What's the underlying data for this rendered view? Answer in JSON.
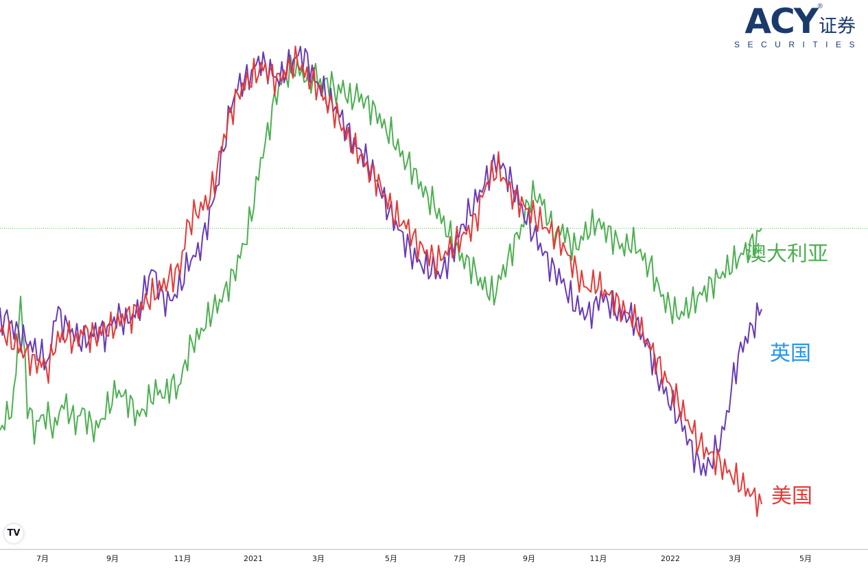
{
  "logo": {
    "mark": "ACY",
    "chinese": "证券",
    "sub": "SECURITIES",
    "registered": "®",
    "color": "#1b3a6b"
  },
  "badge": {
    "label": "TV"
  },
  "chart_data": {
    "type": "line",
    "xlabel": "",
    "ylabel": "",
    "grid": false,
    "reference_line": {
      "color": "#4caf50",
      "style": "dotted"
    },
    "x_ticks": [
      "7月",
      "9月",
      "11月",
      "2021",
      "3月",
      "5月",
      "7月",
      "9月",
      "11月",
      "2022",
      "3月",
      "5月"
    ],
    "series": [
      {
        "name": "澳大利亚",
        "color": "#4caf50",
        "values": [
          -22,
          -20,
          -18,
          -2,
          -18,
          -22,
          -20,
          -20,
          -22,
          -18,
          -19,
          -21,
          -19,
          -21,
          -22,
          -20,
          -18,
          -16,
          -17,
          -18,
          -20,
          -19,
          -17,
          -16,
          -17,
          -15,
          -16,
          -12,
          -9,
          -8,
          -6,
          -4,
          -3,
          -1,
          1,
          4,
          7,
          12,
          18,
          22,
          27,
          30,
          31,
          32,
          31,
          30,
          31,
          29,
          30,
          28,
          29,
          27,
          28,
          27,
          26,
          25,
          23,
          22,
          20,
          18,
          17,
          15,
          13,
          12,
          10,
          8,
          6,
          4,
          3,
          2,
          0,
          -1,
          -2,
          1,
          3,
          6,
          8,
          12,
          13,
          12,
          9,
          7,
          8,
          6,
          5,
          7,
          8,
          9,
          8,
          7,
          6,
          5,
          6,
          5,
          3,
          2,
          -1,
          -3,
          -4,
          -5,
          -4,
          -3,
          -2,
          -1,
          0,
          1,
          2,
          3,
          4,
          5,
          6,
          8
        ]
      },
      {
        "name": "英国",
        "color": "#1e88e5",
        "label_color": "#2196f3",
        "line_color": "#673ab7",
        "values": [
          -6,
          -5,
          -7,
          -8,
          -9,
          -10,
          -11,
          -12,
          -4,
          -6,
          -7,
          -8,
          -9,
          -8,
          -7,
          -8,
          -6,
          -5,
          -6,
          -5,
          -4,
          0,
          2,
          -2,
          -3,
          -2,
          0,
          3,
          4,
          6,
          10,
          14,
          20,
          26,
          29,
          30,
          31,
          33,
          32,
          31,
          30,
          32,
          33,
          34,
          33,
          30,
          29,
          27,
          26,
          24,
          22,
          20,
          19,
          17,
          15,
          12,
          10,
          8,
          6,
          4,
          3,
          2,
          2,
          1,
          3,
          5,
          8,
          10,
          12,
          14,
          16,
          18,
          17,
          15,
          13,
          10,
          8,
          6,
          4,
          2,
          1,
          -1,
          -3,
          -4,
          -5,
          -4,
          -2,
          -3,
          -4,
          -5,
          -5,
          -6,
          -8,
          -10,
          -14,
          -16,
          -18,
          -20,
          -22,
          -25,
          -27,
          -28,
          -26,
          -24,
          -20,
          -14,
          -10,
          -8,
          -6,
          -4
        ]
      },
      {
        "name": "美国",
        "color": "#e53935",
        "values": [
          -7,
          -8,
          -9,
          -10,
          -11,
          -12,
          -12,
          -13,
          -9,
          -8,
          -8,
          -9,
          -7,
          -8,
          -8,
          -7,
          -7,
          -6,
          -5,
          -5,
          -4,
          -3,
          -2,
          -1,
          0,
          1,
          2,
          8,
          10,
          11,
          12,
          15,
          20,
          24,
          27,
          29,
          30,
          31,
          32,
          31,
          30,
          31,
          32,
          33,
          31,
          30,
          29,
          27,
          26,
          24,
          22,
          20,
          19,
          17,
          16,
          14,
          12,
          10,
          9,
          8,
          6,
          5,
          4,
          3,
          4,
          5,
          6,
          7,
          8,
          10,
          14,
          16,
          17,
          15,
          13,
          12,
          11,
          10,
          9,
          8,
          7,
          6,
          4,
          2,
          0,
          -1,
          0,
          -1,
          -2,
          -3,
          -4,
          -5,
          -6,
          -8,
          -10,
          -12,
          -14,
          -16,
          -18,
          -20,
          -22,
          -24,
          -25,
          -26,
          -27,
          -28,
          -29,
          -30,
          -31,
          -32,
          -33
        ]
      }
    ]
  }
}
